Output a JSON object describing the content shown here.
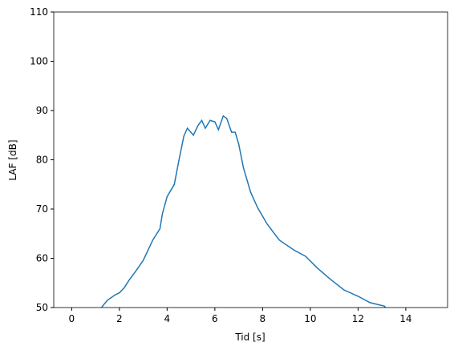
{
  "chart_data": {
    "type": "line",
    "xlabel": "Tid [s]",
    "ylabel": "LAF [dB]",
    "x": [
      1.2,
      1.28,
      1.5,
      1.8,
      2.0,
      2.2,
      2.4,
      2.7,
      3.0,
      3.4,
      3.7,
      3.8,
      4.0,
      4.3,
      4.5,
      4.7,
      4.85,
      5.1,
      5.3,
      5.45,
      5.6,
      5.8,
      6.0,
      6.15,
      6.35,
      6.5,
      6.7,
      6.85,
      7.0,
      7.2,
      7.5,
      7.8,
      8.2,
      8.7,
      9.3,
      9.8,
      10.3,
      10.8,
      11.4,
      12.0,
      12.5,
      13.1,
      13.25
    ],
    "series": [
      {
        "color": "#1f77b4",
        "values": [
          49.5,
          50.2,
          51.5,
          52.5,
          53,
          54,
          55.5,
          57.5,
          59.6,
          63.7,
          66,
          69,
          72.5,
          75,
          80,
          84.8,
          86.4,
          85,
          87,
          88,
          86.4,
          88,
          87.7,
          86.1,
          88.9,
          88.4,
          85.6,
          85.6,
          83.2,
          78.3,
          73.4,
          70.2,
          66.9,
          63.7,
          61.7,
          60.4,
          58,
          55.9,
          53.6,
          52.3,
          51,
          50.3,
          49.5
        ]
      }
    ],
    "xlim": [
      -0.75,
      15.75
    ],
    "ylim": [
      50,
      110
    ],
    "xticks": [
      0,
      2,
      4,
      6,
      8,
      10,
      12,
      14
    ],
    "yticks": [
      50,
      60,
      70,
      80,
      90,
      100,
      110
    ]
  }
}
